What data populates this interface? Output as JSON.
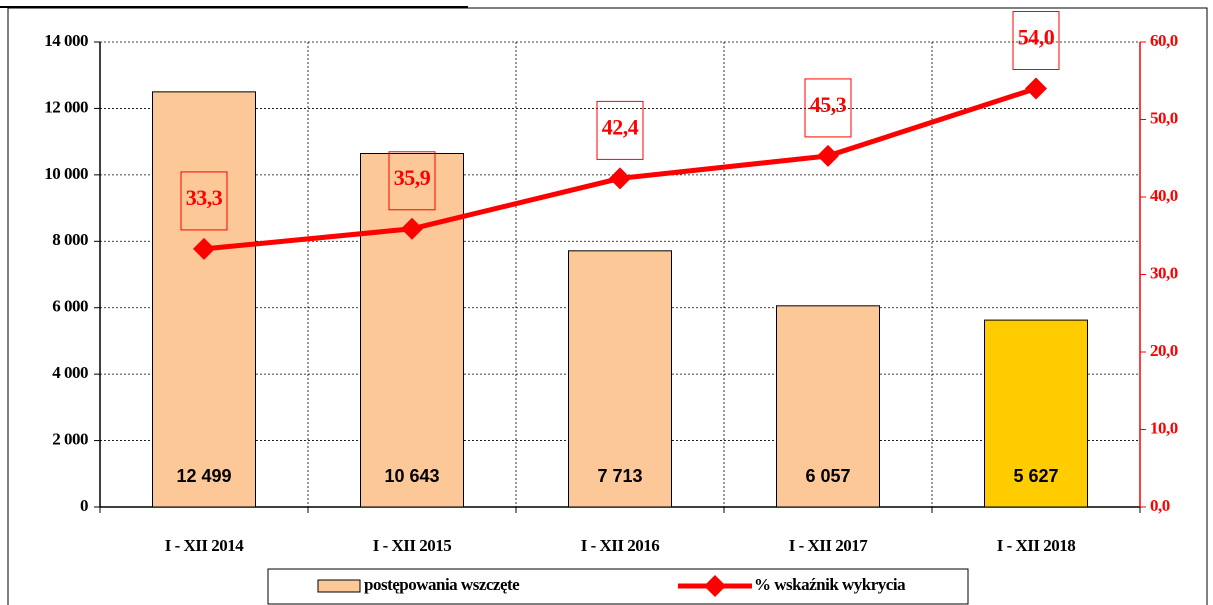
{
  "chart_data": {
    "type": "bar_line",
    "categories": [
      "I - XII 2014",
      "I - XII 2015",
      "I - XII 2016",
      "I - XII 2017",
      "I - XII 2018"
    ],
    "series": [
      {
        "name": "postępowania wszczęte",
        "type": "bar",
        "color": "#fcc898",
        "colors": [
          "#fcc898",
          "#fcc898",
          "#fcc898",
          "#fcc898",
          "#ffcc00"
        ],
        "values": [
          12499,
          10643,
          7713,
          6057,
          5627
        ],
        "value_labels": [
          "12 499",
          "10 643",
          "7 713",
          "6 057",
          "5 627"
        ]
      },
      {
        "name": "% wskaźnik wykrycia",
        "type": "line",
        "axis": "y2",
        "color": "#ff0000",
        "values": [
          33.3,
          35.9,
          42.4,
          45.3,
          54.0
        ],
        "value_labels": [
          "33,3",
          "35,9",
          "42,4",
          "45,3",
          "54,0"
        ]
      }
    ],
    "ylim": [
      0,
      14000
    ],
    "yticks": [
      0,
      {
        "value": 2000,
        "label": "2 000"
      },
      {
        "value": 4000,
        "label": "4 000"
      },
      {
        "value": 6000,
        "label": "6 000"
      },
      {
        "value": 8000,
        "label": "8 000"
      },
      {
        "value": 10000,
        "label": "10 000"
      },
      {
        "value": 12000,
        "label": "12 000"
      },
      {
        "value": 14000,
        "label": "14 000"
      }
    ],
    "y2lim": [
      0,
      60
    ],
    "y2ticks": [
      {
        "value": 0,
        "label": "0,0"
      },
      {
        "value": 10,
        "label": "10,0"
      },
      {
        "value": 20,
        "label": "20,0"
      },
      {
        "value": 30,
        "label": "30,0"
      },
      {
        "value": 40,
        "label": "40,0"
      },
      {
        "value": 50,
        "label": "50,0"
      },
      {
        "value": 60,
        "label": "60,0"
      }
    ],
    "grid": true,
    "legend": "bottom"
  }
}
